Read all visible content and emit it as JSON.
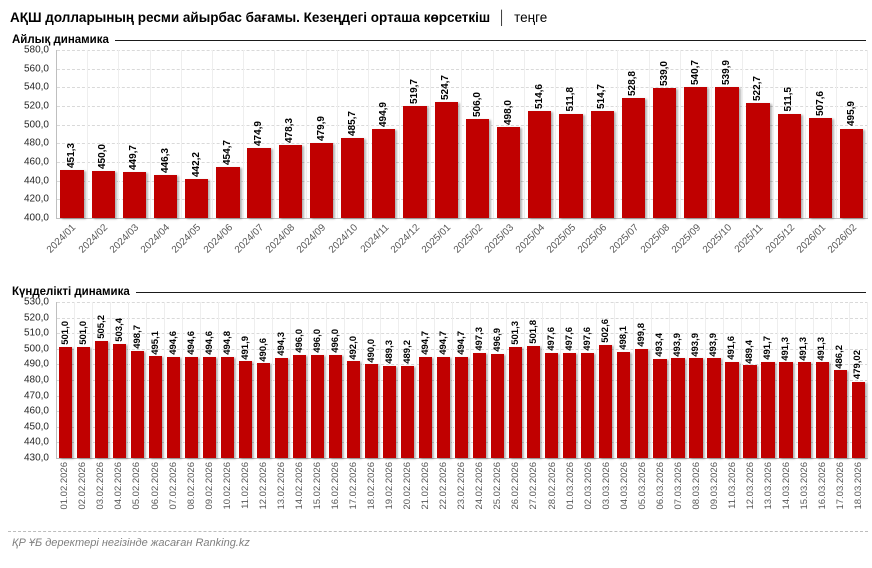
{
  "header": {
    "title_bold": "АҚШ долларының ресми айырбас бағамы. Кезеңдегі орташа көрсеткіш",
    "title_separator": "│",
    "title_unit": "теңге"
  },
  "footer": {
    "credit": "ҚР ҰБ деректері негізінде жасаған Ranking.kz"
  },
  "colors": {
    "bar": "#c00000",
    "gridline": "#d9d9d9",
    "axis_line": "#bfbfbf",
    "y_tick_text": "#262626",
    "x_tick_text": "#595959",
    "footer_text": "#7f7f7f",
    "rule": "#1a1a1a"
  },
  "chart_data": [
    {
      "type": "bar",
      "section_title": "Айлық динамика",
      "x_label_style": "diagonal",
      "grid": true,
      "bar_color": "#c00000",
      "ylim": [
        400,
        580
      ],
      "ytick_step": 20,
      "yticks": [
        "580,0",
        "560,0",
        "540,0",
        "520,0",
        "500,0",
        "480,0",
        "460,0",
        "440,0",
        "420,0",
        "400,0"
      ],
      "categories": [
        "2024/01",
        "2024/02",
        "2024/03",
        "2024/04",
        "2024/05",
        "2024/06",
        "2024/07",
        "2024/08",
        "2024/09",
        "2024/10",
        "2024/11",
        "2024/12",
        "2025/01",
        "2025/02",
        "2025/03",
        "2025/04",
        "2025/05",
        "2025/06",
        "2025/07",
        "2025/08",
        "2025/09",
        "2025/10",
        "2025/11",
        "2025/12",
        "2026/01",
        "2026/02"
      ],
      "values": [
        451.3,
        450.0,
        449.7,
        446.3,
        442.2,
        454.7,
        474.9,
        478.3,
        479.9,
        485.7,
        494.9,
        519.7,
        524.7,
        506.0,
        498.0,
        514.6,
        511.8,
        514.7,
        528.8,
        539.0,
        540.7,
        539.9,
        522.7,
        511.5,
        507.6,
        495.9
      ],
      "labels": [
        "451,3",
        "450,0",
        "449,7",
        "446,3",
        "442,2",
        "454,7",
        "474,9",
        "478,3",
        "479,9",
        "485,7",
        "494,9",
        "519,7",
        "524,7",
        "506,0",
        "498,0",
        "514,6",
        "511,8",
        "514,7",
        "528,8",
        "539,0",
        "540,7",
        "539,9",
        "522,7",
        "511,5",
        "507,6",
        "495,9"
      ]
    },
    {
      "type": "bar",
      "section_title": "Күнделікті динамика",
      "x_label_style": "vertical",
      "grid": true,
      "bar_color": "#c00000",
      "ylim": [
        430,
        530
      ],
      "ytick_step": 10,
      "yticks": [
        "530,0",
        "520,0",
        "510,0",
        "500,0",
        "490,0",
        "480,0",
        "470,0",
        "460,0",
        "450,0",
        "440,0",
        "430,0"
      ],
      "categories": [
        "01.02.2026",
        "02.02.2026",
        "03.02.2026",
        "04.02.2026",
        "05.02.2026",
        "06.02.2026",
        "07.02.2026",
        "08.02.2026",
        "09.02.2026",
        "10.02.2026",
        "11.02.2026",
        "12.02.2026",
        "13.02.2026",
        "14.02.2026",
        "15.02.2026",
        "16.02.2026",
        "17.02.2026",
        "18.02.2026",
        "19.02.2026",
        "20.02.2026",
        "21.02.2026",
        "22.02.2026",
        "23.02.2026",
        "24.02.2026",
        "25.02.2026",
        "26.02.2026",
        "27.02.2026",
        "28.02.2026",
        "01.03.2026",
        "02.03.2026",
        "03.03.2026",
        "04.03.2026",
        "05.03.2026",
        "06.03.2026",
        "07.03.2026",
        "08.03.2026",
        "09.03.2026",
        "11.03.2026",
        "12.03.2026",
        "13.03.2026",
        "14.03.2026",
        "15.03.2026",
        "16.03.2026",
        "17.03.2026",
        "18.03.2026"
      ],
      "values": [
        501.0,
        501.0,
        505.2,
        503.4,
        498.7,
        495.1,
        494.6,
        494.6,
        494.6,
        494.8,
        491.9,
        490.6,
        494.3,
        496.0,
        496.0,
        496.0,
        492.0,
        490.0,
        489.3,
        489.2,
        494.7,
        494.7,
        494.7,
        497.3,
        496.9,
        501.3,
        501.8,
        497.6,
        497.6,
        497.6,
        502.6,
        498.1,
        499.8,
        493.4,
        493.9,
        493.9,
        493.9,
        491.6,
        489.4,
        491.7,
        491.3,
        491.3,
        491.3,
        486.2,
        479.02
      ],
      "labels": [
        "501,0",
        "501,0",
        "505,2",
        "503,4",
        "498,7",
        "495,1",
        "494,6",
        "494,6",
        "494,6",
        "494,8",
        "491,9",
        "490,6",
        "494,3",
        "496,0",
        "496,0",
        "496,0",
        "492,0",
        "490,0",
        "489,3",
        "489,2",
        "494,7",
        "494,7",
        "494,7",
        "497,3",
        "496,9",
        "501,3",
        "501,8",
        "497,6",
        "497,6",
        "497,6",
        "502,6",
        "498,1",
        "499,8",
        "493,4",
        "493,9",
        "493,9",
        "493,9",
        "491,6",
        "489,4",
        "491,7",
        "491,3",
        "491,3",
        "491,3",
        "486,2",
        "479,02"
      ]
    }
  ]
}
